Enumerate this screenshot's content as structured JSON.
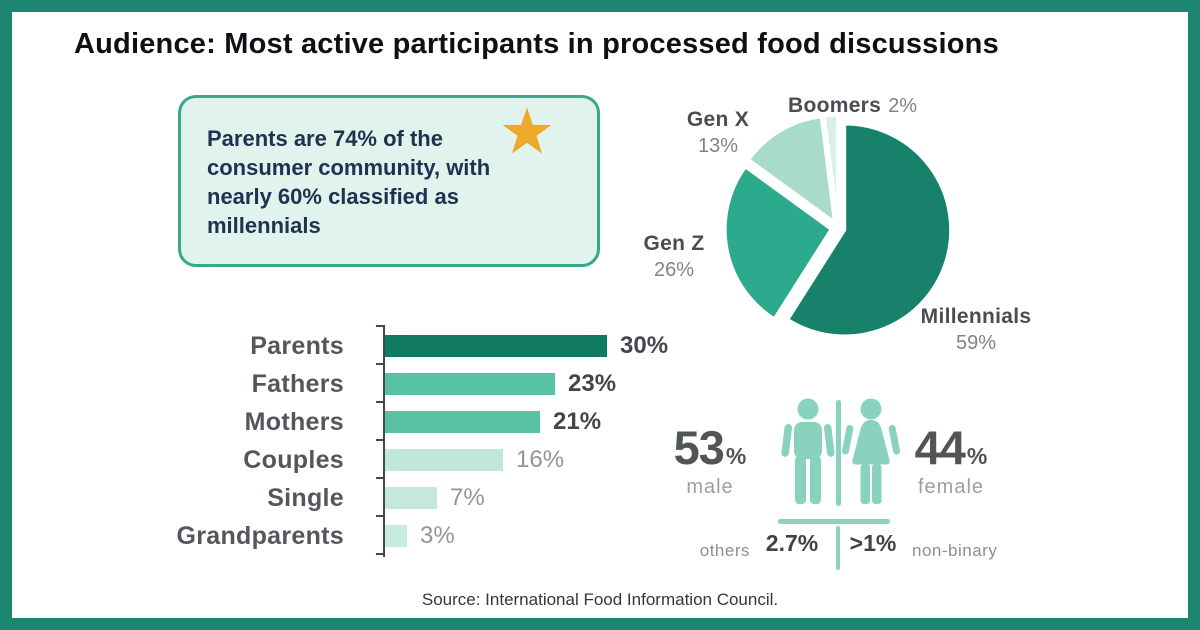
{
  "title": "Audience: Most active participants in processed food discussions",
  "callout": {
    "text": "Parents are 74% of the consumer community, with nearly 60% classified as millennials",
    "icon": "star-icon"
  },
  "source": "Source: International Food Information Council.",
  "colors": {
    "frame": "#1C8670",
    "callout_bg": "#E1F3ED",
    "callout_border": "#34A98C",
    "star": "#EFA827",
    "mint_icon": "#89D2BE",
    "axis": "#43484E"
  },
  "chart_data": [
    {
      "type": "pie",
      "name": "generations",
      "start_angle_deg": 0,
      "direction": "clockwise",
      "legend_position": "outside-labels",
      "series": [
        {
          "name": "Millennials",
          "value": 59,
          "display": "59%",
          "color": "#17816B"
        },
        {
          "name": "Gen Z",
          "value": 26,
          "display": "26%",
          "color": "#2BAA8D"
        },
        {
          "name": "Gen X",
          "value": 13,
          "display": "13%",
          "color": "#A8DBCB"
        },
        {
          "name": "Boomers",
          "value": 2,
          "display": "2%",
          "color": "#D9EFE8"
        }
      ]
    },
    {
      "type": "bar",
      "name": "participant-roles",
      "orientation": "horizontal",
      "xlim": [
        0,
        32
      ],
      "value_suffix": "%",
      "grid": false,
      "bars": [
        {
          "label": "Parents",
          "value": 30,
          "display": "30%",
          "color": "#107A62",
          "emphasis": "strong"
        },
        {
          "label": "Fathers",
          "value": 23,
          "display": "23%",
          "color": "#58C1A4",
          "emphasis": "strong"
        },
        {
          "label": "Mothers",
          "value": 21,
          "display": "21%",
          "color": "#58C1A4",
          "emphasis": "strong"
        },
        {
          "label": "Couples",
          "value": 16,
          "display": "16%",
          "color": "#C1E7DA",
          "emphasis": "muted"
        },
        {
          "label": "Single",
          "value": 7,
          "display": "7%",
          "color": "#C4E9DC",
          "emphasis": "muted"
        },
        {
          "label": "Grandparents",
          "value": 3,
          "display": "3%",
          "color": "#C7EBDF",
          "emphasis": "muted"
        }
      ]
    },
    {
      "type": "pictograph",
      "name": "gender-split",
      "male": {
        "value": "53",
        "suffix": "%",
        "label": "male"
      },
      "female": {
        "value": "44",
        "suffix": "%",
        "label": "female"
      },
      "others": {
        "label": "others",
        "value": "2.7%"
      },
      "non_binary": {
        "value": ">1%",
        "label": "non-binary"
      }
    }
  ]
}
